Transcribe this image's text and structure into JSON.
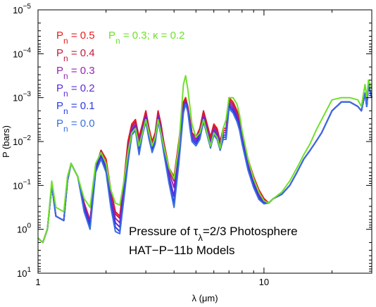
{
  "chart_data": {
    "type": "line",
    "xlabel": "λ (μm)",
    "ylabel": "P (bars)",
    "xscale": "log",
    "yscale": "log",
    "yaxis_inverted": true,
    "xlim": [
      1.0,
      30.0
    ],
    "ylim": [
      1e-05,
      10
    ],
    "xticks": [
      {
        "value": 1,
        "label": "1"
      },
      {
        "value": 10,
        "label": "10"
      }
    ],
    "yticks": [
      {
        "value": 1e-05,
        "base": "10",
        "exp": "−5"
      },
      {
        "value": 0.0001,
        "base": "10",
        "exp": "−4"
      },
      {
        "value": 0.001,
        "base": "10",
        "exp": "−3"
      },
      {
        "value": 0.01,
        "base": "10",
        "exp": "−2"
      },
      {
        "value": 0.1,
        "base": "10",
        "exp": "−1"
      },
      {
        "value": 1,
        "base": "10",
        "exp": "0"
      },
      {
        "value": 10,
        "base": "10",
        "exp": "1"
      }
    ],
    "grid": false,
    "legend_position": "top-left",
    "annotation": {
      "line1_prefix": "Pressure of τ",
      "line1_sub": "λ",
      "line1_suffix": "=2/3 Photosphere",
      "line2": "HAT−P−11b Models"
    },
    "x": [
      1.0,
      1.05,
      1.1,
      1.15,
      1.2,
      1.3,
      1.35,
      1.4,
      1.5,
      1.6,
      1.7,
      1.8,
      1.9,
      2.0,
      2.1,
      2.2,
      2.3,
      2.4,
      2.5,
      2.6,
      2.7,
      2.8,
      2.9,
      3.0,
      3.1,
      3.2,
      3.3,
      3.4,
      3.5,
      3.6,
      3.8,
      4.0,
      4.2,
      4.4,
      4.5,
      4.6,
      4.7,
      4.8,
      5.0,
      5.2,
      5.4,
      5.6,
      5.8,
      6.0,
      6.2,
      6.4,
      6.6,
      6.8,
      7.0,
      7.3,
      7.6,
      7.8,
      8.0,
      8.5,
      9.0,
      9.5,
      10.0,
      10.5,
      11.0,
      12.0,
      13.0,
      14.0,
      15.0,
      16.0,
      17.0,
      18.0,
      20.0,
      22.0,
      24.0,
      26.0,
      27.0,
      28.0,
      28.5,
      29.0,
      30.0
    ],
    "series": [
      {
        "name_prefix": "P",
        "name_sub": "n",
        "name_suffix": " = 0.5",
        "color": "#ee1c1c",
        "log10_values": [
          0.2,
          0.3,
          0.0,
          -1.0,
          -0.3,
          -0.2,
          -1.1,
          -1.5,
          -1.2,
          -0.6,
          -0.2,
          -1.4,
          -1.8,
          -1.6,
          -0.9,
          -0.4,
          -0.3,
          -1.1,
          -2.0,
          -2.4,
          -2.5,
          -2.1,
          -2.4,
          -2.7,
          -2.3,
          -2.0,
          -2.2,
          -2.7,
          -2.4,
          -2.0,
          -1.4,
          -1.2,
          -2.0,
          -2.9,
          -3.0,
          -2.8,
          -2.5,
          -2.2,
          -2.1,
          -2.3,
          -2.7,
          -2.4,
          -2.1,
          -2.4,
          -2.3,
          -2.0,
          -2.3,
          -2.3,
          -3.0,
          -2.9,
          -2.7,
          -2.5,
          -2.2,
          -1.6,
          -1.2,
          -0.9,
          -0.7,
          -0.6,
          -0.7,
          -0.8,
          -1.0,
          -1.3,
          -1.6,
          -1.8,
          -2.0,
          -2.2,
          -2.7,
          -2.9,
          -2.9,
          -2.8,
          -2.7,
          -3.1,
          -2.8,
          -3.3,
          -3.0
        ]
      },
      {
        "name_prefix": "P",
        "name_sub": "n",
        "name_suffix": " = 0.4",
        "color": "#c41a3e",
        "log10_values": [
          0.2,
          0.3,
          0.0,
          -1.0,
          -0.3,
          -0.2,
          -1.1,
          -1.5,
          -1.2,
          -0.6,
          -0.2,
          -1.4,
          -1.8,
          -1.5,
          -0.85,
          -0.35,
          -0.25,
          -1.05,
          -1.9,
          -2.35,
          -2.45,
          -2.05,
          -2.35,
          -2.65,
          -2.25,
          -1.95,
          -2.15,
          -2.65,
          -2.35,
          -1.95,
          -1.35,
          -1.1,
          -1.9,
          -2.85,
          -2.95,
          -2.78,
          -2.5,
          -2.2,
          -2.1,
          -2.25,
          -2.65,
          -2.35,
          -2.05,
          -2.35,
          -2.25,
          -2.0,
          -2.25,
          -2.25,
          -2.95,
          -2.85,
          -2.65,
          -2.45,
          -2.15,
          -1.55,
          -1.15,
          -0.85,
          -0.68,
          -0.6,
          -0.7,
          -0.8,
          -1.0,
          -1.3,
          -1.6,
          -1.8,
          -2.0,
          -2.2,
          -2.7,
          -2.9,
          -2.9,
          -2.8,
          -2.7,
          -3.1,
          -2.8,
          -3.3,
          -3.0
        ]
      },
      {
        "name_prefix": "P",
        "name_sub": "n",
        "name_suffix": " = 0.3",
        "color": "#9a22b4",
        "log10_values": [
          0.2,
          0.3,
          0.0,
          -1.0,
          -0.3,
          -0.2,
          -1.1,
          -1.5,
          -1.2,
          -0.55,
          -0.15,
          -1.4,
          -1.75,
          -1.45,
          -0.75,
          -0.25,
          -0.15,
          -0.95,
          -1.8,
          -2.3,
          -2.4,
          -1.95,
          -2.3,
          -2.6,
          -2.2,
          -1.9,
          -2.1,
          -2.6,
          -2.3,
          -1.9,
          -1.3,
          -0.95,
          -1.8,
          -2.8,
          -2.92,
          -2.75,
          -2.45,
          -2.15,
          -2.05,
          -2.2,
          -2.6,
          -2.3,
          -2.0,
          -2.3,
          -2.2,
          -1.95,
          -2.2,
          -2.2,
          -2.9,
          -2.8,
          -2.6,
          -2.4,
          -2.1,
          -1.5,
          -1.1,
          -0.8,
          -0.65,
          -0.6,
          -0.7,
          -0.8,
          -1.0,
          -1.3,
          -1.6,
          -1.8,
          -2.0,
          -2.2,
          -2.7,
          -2.9,
          -2.9,
          -2.8,
          -2.7,
          -3.1,
          -2.8,
          -3.3,
          -3.0
        ]
      },
      {
        "name_prefix": "P",
        "name_sub": "n",
        "name_suffix": " = 0.2",
        "color": "#5a2ad6",
        "log10_values": [
          0.2,
          0.3,
          0.0,
          -1.0,
          -0.3,
          -0.2,
          -1.1,
          -1.5,
          -1.2,
          -0.5,
          -0.1,
          -1.4,
          -1.7,
          -1.4,
          -0.65,
          -0.15,
          -0.05,
          -0.85,
          -1.7,
          -2.25,
          -2.35,
          -1.85,
          -2.25,
          -2.55,
          -2.15,
          -1.85,
          -2.05,
          -2.55,
          -2.25,
          -1.85,
          -1.2,
          -0.75,
          -1.7,
          -2.75,
          -2.9,
          -2.72,
          -2.4,
          -2.1,
          -2.0,
          -2.15,
          -2.55,
          -2.25,
          -1.95,
          -2.25,
          -2.15,
          -1.9,
          -2.15,
          -2.15,
          -2.85,
          -2.75,
          -2.55,
          -2.35,
          -2.05,
          -1.45,
          -1.05,
          -0.75,
          -0.62,
          -0.6,
          -0.7,
          -0.8,
          -1.0,
          -1.3,
          -1.6,
          -1.8,
          -2.0,
          -2.2,
          -2.7,
          -2.9,
          -2.9,
          -2.8,
          -2.7,
          -3.1,
          -2.8,
          -3.3,
          -3.0
        ]
      },
      {
        "name_prefix": "P",
        "name_sub": "n",
        "name_suffix": " = 0.1",
        "color": "#2a3ae6",
        "log10_values": [
          0.2,
          0.3,
          0.0,
          -1.0,
          -0.3,
          -0.2,
          -1.1,
          -1.5,
          -1.2,
          -0.45,
          -0.05,
          -1.35,
          -1.65,
          -1.35,
          -0.55,
          -0.05,
          0.05,
          -0.75,
          -1.6,
          -2.2,
          -2.3,
          -1.75,
          -2.2,
          -2.5,
          -2.1,
          -1.8,
          -2.0,
          -2.5,
          -2.2,
          -1.8,
          -1.1,
          -0.6,
          -1.6,
          -2.7,
          -2.88,
          -2.7,
          -2.35,
          -2.05,
          -1.95,
          -2.1,
          -2.5,
          -2.2,
          -1.9,
          -2.2,
          -2.1,
          -1.85,
          -2.1,
          -2.1,
          -2.8,
          -2.7,
          -2.5,
          -2.3,
          -2.0,
          -1.4,
          -1.0,
          -0.7,
          -0.6,
          -0.6,
          -0.7,
          -0.8,
          -1.0,
          -1.3,
          -1.6,
          -1.8,
          -2.0,
          -2.2,
          -2.7,
          -2.9,
          -2.9,
          -2.8,
          -2.7,
          -3.1,
          -2.8,
          -3.3,
          -3.0
        ]
      },
      {
        "name_prefix": "P",
        "name_sub": "n",
        "name_suffix": " = 0.0",
        "color": "#3b6ee0",
        "log10_values": [
          0.2,
          0.3,
          0.0,
          -1.0,
          -0.3,
          -0.2,
          -1.1,
          -1.5,
          -1.2,
          -0.4,
          0.0,
          -1.3,
          -1.6,
          -1.3,
          -0.5,
          0.05,
          0.1,
          -0.7,
          -1.5,
          -2.15,
          -2.25,
          -1.7,
          -2.15,
          -2.45,
          -2.05,
          -1.75,
          -1.95,
          -2.45,
          -2.15,
          -1.75,
          -1.05,
          -0.5,
          -1.5,
          -2.65,
          -2.85,
          -2.68,
          -2.3,
          -2.0,
          -1.9,
          -2.05,
          -2.45,
          -2.15,
          -1.85,
          -2.15,
          -2.05,
          -1.8,
          -2.05,
          -2.05,
          -2.75,
          -2.65,
          -2.45,
          -2.25,
          -1.95,
          -1.35,
          -0.95,
          -0.68,
          -0.58,
          -0.6,
          -0.7,
          -0.8,
          -1.0,
          -1.3,
          -1.6,
          -1.8,
          -2.0,
          -2.2,
          -2.7,
          -2.9,
          -2.9,
          -2.8,
          -2.7,
          -3.1,
          -2.8,
          -3.3,
          -3.0
        ]
      },
      {
        "name_prefix": "P",
        "name_sub": "n",
        "name_suffix": " = 0.3; κ = 0.2",
        "color": "#6fe02a",
        "log10_values": [
          0.2,
          0.3,
          0.0,
          -1.1,
          -0.5,
          -0.4,
          -1.2,
          -1.5,
          -1.2,
          -0.7,
          -0.5,
          -1.5,
          -1.75,
          -1.5,
          -0.9,
          -0.6,
          -0.55,
          -1.1,
          -1.75,
          -2.2,
          -2.3,
          -1.9,
          -2.2,
          -2.5,
          -2.2,
          -1.9,
          -2.1,
          -2.5,
          -2.2,
          -1.9,
          -1.4,
          -1.15,
          -1.9,
          -3.3,
          -3.5,
          -3.2,
          -2.8,
          -2.4,
          -2.1,
          -2.2,
          -2.5,
          -2.2,
          -1.9,
          -2.2,
          -2.1,
          -1.85,
          -2.3,
          -2.5,
          -3.0,
          -3.0,
          -2.85,
          -2.6,
          -2.25,
          -1.6,
          -1.15,
          -0.85,
          -0.65,
          -0.6,
          -0.7,
          -0.85,
          -1.1,
          -1.4,
          -1.7,
          -1.95,
          -2.25,
          -2.5,
          -2.95,
          -3.0,
          -3.0,
          -2.95,
          -2.8,
          -3.3,
          -3.0,
          -3.4,
          -3.2
        ]
      }
    ]
  }
}
